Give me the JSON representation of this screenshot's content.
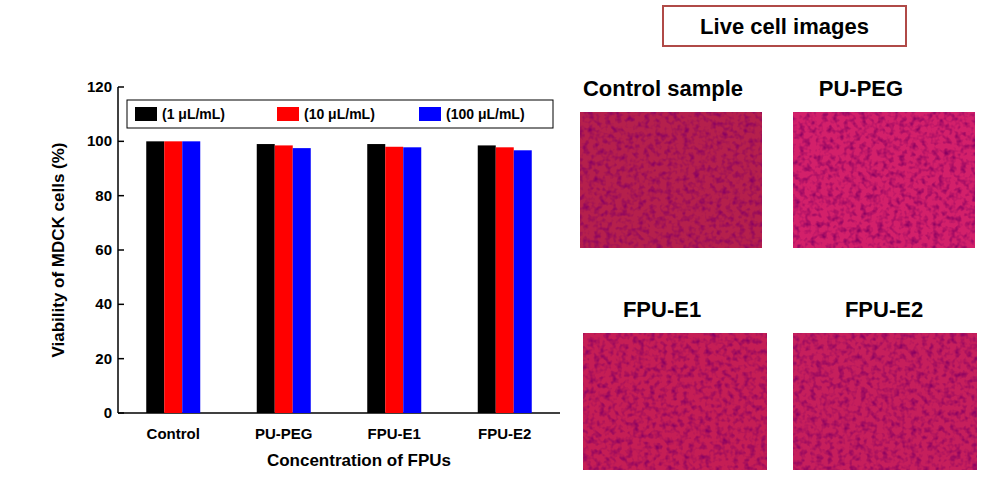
{
  "chart_data": {
    "type": "bar",
    "x_label": "Concentration of FPUs",
    "y_label": "Viability of MDCK cells (%)",
    "categories": [
      "Control",
      "PU-PEG",
      "FPU-E1",
      "FPU-E2"
    ],
    "series": [
      {
        "name": "(1 μL/mL)",
        "color": "#000000",
        "values": [
          100,
          99,
          99,
          98.5
        ]
      },
      {
        "name": "(10 μL/mL)",
        "color": "#ff0000",
        "values": [
          100,
          98.5,
          98,
          97.8
        ]
      },
      {
        "name": "(100 μL/mL)",
        "color": "#0000ff",
        "values": [
          100,
          97.5,
          97.8,
          96.7
        ]
      }
    ],
    "ylim": [
      0,
      120
    ],
    "yticks": [
      0,
      20,
      40,
      60,
      80,
      100,
      120
    ],
    "grid": false,
    "legend": "top"
  },
  "cell_images": {
    "title": "Live cell images",
    "images": [
      "Control sample",
      "PU-PEG",
      "FPU-E1",
      "FPU-E2"
    ]
  }
}
